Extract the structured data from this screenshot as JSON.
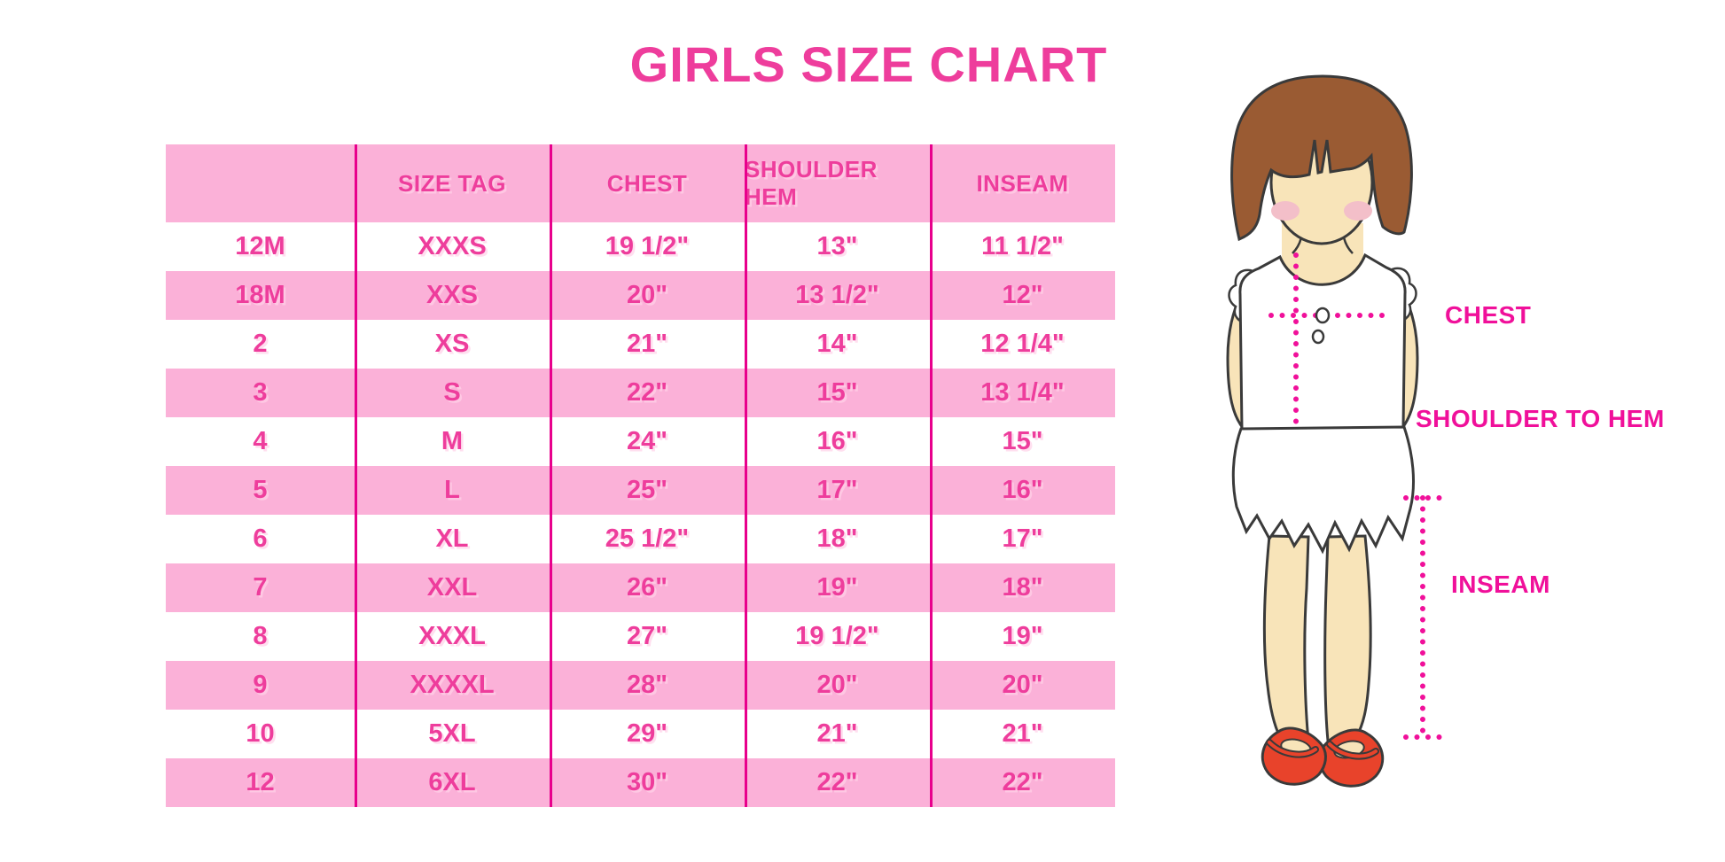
{
  "title": "GIRLS SIZE CHART",
  "chart_data": {
    "type": "table",
    "title": "GIRLS SIZE CHART",
    "columns": [
      "",
      "SIZE TAG",
      "CHEST",
      "SHOULDER HEM",
      "INSEAM"
    ],
    "rows": [
      [
        "12M",
        "XXXS",
        "19 1/2\"",
        "13\"",
        "11 1/2\""
      ],
      [
        "18M",
        "XXS",
        "20\"",
        "13 1/2\"",
        "12\""
      ],
      [
        "2",
        "XS",
        "21\"",
        "14\"",
        "12 1/4\""
      ],
      [
        "3",
        "S",
        "22\"",
        "15\"",
        "13 1/4\""
      ],
      [
        "4",
        "M",
        "24\"",
        "16\"",
        "15\""
      ],
      [
        "5",
        "L",
        "25\"",
        "17\"",
        "16\""
      ],
      [
        "6",
        "XL",
        "25 1/2\"",
        "18\"",
        "17\""
      ],
      [
        "7",
        "XXL",
        "26\"",
        "19\"",
        "18\""
      ],
      [
        "8",
        "XXXL",
        "27\"",
        "19 1/2\"",
        "19\""
      ],
      [
        "9",
        "XXXXL",
        "28\"",
        "20\"",
        "20\""
      ],
      [
        "10",
        "5XL",
        "29\"",
        "21\"",
        "21\""
      ],
      [
        "12",
        "6XL",
        "30\"",
        "22\"",
        "22\""
      ]
    ],
    "row_stripe_pattern": "even rows white, odd rows pink starting with 18M",
    "legend_position": "none",
    "grid": "vertical magenta column separators only"
  },
  "figure": {
    "chest_label": "CHEST",
    "shoulder_to_hem_label": "SHOULDER TO HEM",
    "inseam_label": "INSEAM",
    "description": "illustration of girl in white sleeveless dress with dotted measurement lines"
  },
  "colors": {
    "title_pink": "#EE3D9C",
    "band_pink": "#FBB1D8",
    "table_text_pink": "#EE3D9C",
    "grid_line_magenta": "#E8008C",
    "label_magenta": "#F0109A",
    "hair_brown": "#9A5B33",
    "skin": "#F8E4B9",
    "blush": "#F3BFC9",
    "shoe_red": "#E8432B",
    "background": "#FFFFFF"
  }
}
